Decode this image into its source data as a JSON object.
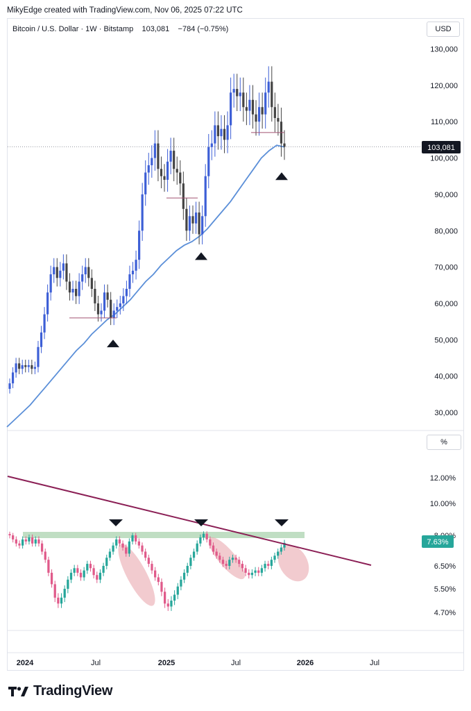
{
  "attribution": "MikyEdge created with TradingView.com, Nov 06, 2025 07:22 UTC",
  "symbol": {
    "name": "Bitcoin / U.S. Dollar",
    "timeframe": "1W",
    "exchange": "Bitstamp",
    "last": "103,081",
    "change": "−784",
    "change_pct": "(−0.75%)"
  },
  "currency": "USD",
  "percent_badge": "%",
  "brand": "TradingView",
  "colors": {
    "up_candle": "#3d5fd6",
    "down_candle": "#444444",
    "ma_line": "#5b8fd8",
    "osc_up": "#26a69a",
    "osc_down": "#e05a8a",
    "trendline": "#8b1f55",
    "resistance_band": "#b5d8b8",
    "highlight_ellipse": "#e8a1a8"
  },
  "chart_data": [
    {
      "type": "candlestick",
      "title": "Bitcoin / U.S. Dollar · 1W · Bitstamp",
      "y_axis": {
        "range": [
          25000,
          133000
        ],
        "ticks": [
          "30,000",
          "40,000",
          "50,000",
          "60,000",
          "70,000",
          "80,000",
          "90,000",
          "100,000",
          "110,000",
          "120,000",
          "130,000"
        ]
      },
      "current_price_label": "103,081",
      "current_price": 103081,
      "price_series_close": [
        38000,
        41000,
        43500,
        42000,
        43000,
        42500,
        43000,
        42000,
        42500,
        48000,
        52000,
        57000,
        63000,
        68000,
        70000,
        67000,
        69000,
        71000,
        66000,
        63000,
        64000,
        62000,
        66000,
        68000,
        70000,
        67000,
        64000,
        60000,
        57000,
        58000,
        63000,
        61000,
        56000,
        58000,
        59000,
        60000,
        62000,
        64000,
        68000,
        69000,
        72000,
        80000,
        90000,
        96000,
        98000,
        100000,
        104000,
        97000,
        95000,
        94000,
        99000,
        102000,
        97000,
        96000,
        93000,
        86000,
        80000,
        84000,
        82000,
        85000,
        79000,
        84000,
        95000,
        103000,
        104000,
        109000,
        106000,
        108000,
        105000,
        109000,
        118000,
        119000,
        117000,
        118000,
        114000,
        113000,
        116000,
        112000,
        110000,
        114000,
        112000,
        118000,
        121000,
        114000,
        111000,
        110000,
        104000,
        103081
      ],
      "moving_average": [
        26000,
        28000,
        30000,
        32000,
        34500,
        37000,
        39500,
        42000,
        44500,
        47000,
        49000,
        51500,
        53500,
        55500,
        57000,
        59000,
        61000,
        63500,
        66000,
        68000,
        70500,
        72500,
        74500,
        76000,
        77000,
        78500,
        80500,
        83000,
        85500,
        88000,
        91000,
        94000,
        97000,
        100000,
        102000,
        103500,
        103000
      ],
      "signal_markers": [
        {
          "at": "Jul-Aug 2024",
          "price": 51000,
          "direction": "up"
        },
        {
          "at": "Apr 2025",
          "price": 75000,
          "direction": "up"
        },
        {
          "at": "Nov 2025",
          "price": 97000,
          "direction": "up"
        }
      ]
    },
    {
      "type": "bar",
      "title": "",
      "y_axis": {
        "ticks": [
          "4.70%",
          "5.50%",
          "6.50%",
          "8.00%",
          "10.00%",
          "12.00%"
        ]
      },
      "current_value_label": "7.63%",
      "current_value": 7.63,
      "values": [
        8.0,
        7.8,
        7.6,
        7.5,
        7.8,
        7.7,
        7.9,
        7.6,
        7.8,
        7.6,
        7.2,
        6.8,
        6.2,
        5.7,
        5.2,
        5.0,
        5.2,
        5.5,
        5.9,
        6.2,
        6.4,
        6.2,
        6.0,
        6.3,
        6.6,
        6.4,
        6.1,
        5.9,
        6.2,
        6.5,
        6.9,
        7.2,
        7.5,
        7.8,
        7.6,
        7.4,
        7.1,
        7.7,
        8.0,
        7.7,
        7.5,
        7.2,
        6.9,
        6.6,
        6.3,
        6.0,
        5.8,
        5.4,
        5.0,
        4.9,
        5.1,
        5.3,
        5.6,
        5.9,
        6.2,
        6.5,
        6.9,
        7.2,
        7.6,
        7.9,
        8.1,
        7.8,
        7.5,
        7.2,
        7.0,
        6.8,
        6.6,
        6.5,
        6.8,
        6.9,
        6.8,
        6.6,
        6.4,
        6.2,
        6.1,
        6.2,
        6.3,
        6.2,
        6.4,
        6.6,
        6.5,
        6.8,
        7.0,
        7.2,
        7.4,
        7.63
      ],
      "resistance_level": 8.0,
      "signal_markers": [
        {
          "at": "Aug 2024",
          "direction": "down"
        },
        {
          "at": "Mar 2025",
          "direction": "down"
        },
        {
          "at": "Oct 2025",
          "direction": "down"
        }
      ]
    }
  ],
  "time_axis": [
    "2024",
    "Jul",
    "2025",
    "Jul",
    "2026",
    "Jul"
  ]
}
